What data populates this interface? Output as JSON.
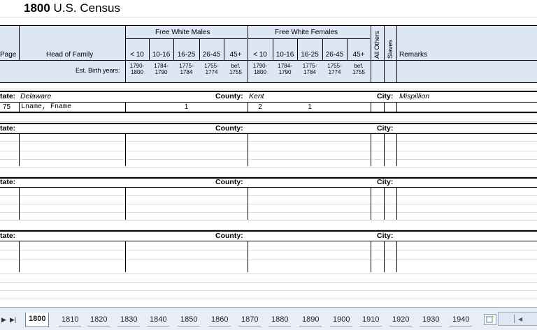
{
  "title": {
    "year": "1800",
    "rest": " U.S. Census"
  },
  "header": {
    "page": "Page",
    "head_of_family": "Head of Family",
    "free_white_males": "Free White Males",
    "free_white_females": "Free White Females",
    "age_ranges": [
      "< 10",
      "10-16",
      "16-25",
      "26-45",
      "45+"
    ],
    "all_others": "All Others",
    "slaves": "Slaves",
    "remarks": "Remarks",
    "est_birth_years": "Est. Birth years:",
    "birth_top": [
      "1790-",
      "1784-",
      "1775-",
      "1755-",
      "bef."
    ],
    "birth_bottom": [
      "1800",
      "1790",
      "1784",
      "1774",
      "1755"
    ]
  },
  "labels": {
    "state": "tate:",
    "county": "County:",
    "city": "City:"
  },
  "block1": {
    "state": "Delaware",
    "county": "Kent",
    "city": "Mispillion",
    "page": "75",
    "name": "Lname, Fname",
    "male_16_25": "1",
    "female_lt10": "2",
    "female_16_25": "1"
  },
  "tabs": [
    "1800",
    "1810",
    "1820",
    "1830",
    "1840",
    "1850",
    "1860",
    "1870",
    "1880",
    "1890",
    "1900",
    "1910",
    "1920",
    "1930",
    "1940"
  ],
  "nav": {
    "next": "▶",
    "last": "▶|"
  }
}
